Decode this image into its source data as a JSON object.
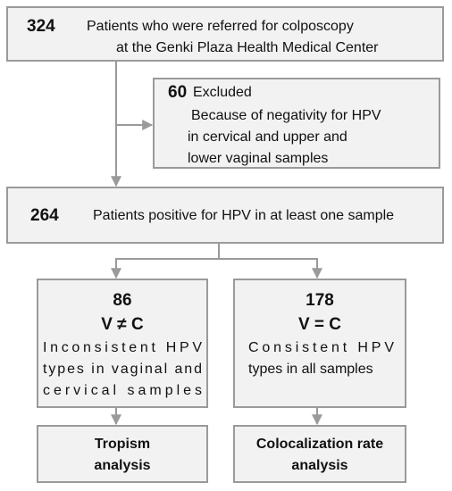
{
  "nodes": [
    {
      "count": 324,
      "label": [
        "Patients who were referred for colposcopy",
        "at the Genki Plaza Health Medical Center"
      ]
    },
    {
      "count": 60,
      "label": "Excluded",
      "detail": [
        "Because of negativity for HPV",
        "in cervical and upper and",
        "lower vaginal samples"
      ]
    },
    {
      "count": 264,
      "label": "Patients positive for HPV in at least one sample"
    },
    {
      "count": 86,
      "group": "V ≠ C",
      "label": [
        "Inconsistent HPV",
        "types in vaginal and",
        "cervical samples"
      ]
    },
    {
      "count": 178,
      "group": "V = C",
      "label": [
        "Consistent HPV",
        "types in all samples"
      ]
    },
    {
      "label": [
        "Tropism",
        "analysis"
      ]
    },
    {
      "label": [
        "Colocalization rate",
        "analysis"
      ]
    }
  ]
}
